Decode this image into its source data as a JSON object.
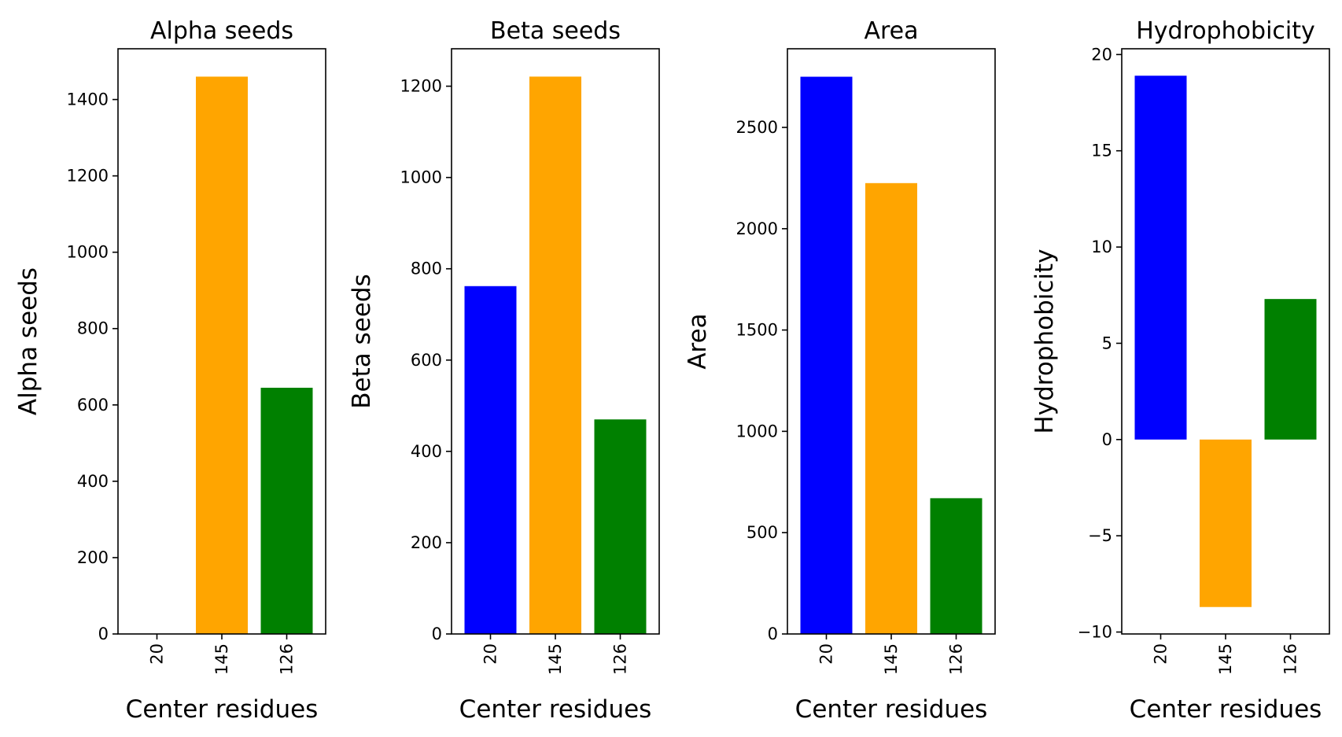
{
  "chart_data": [
    {
      "type": "bar",
      "title": "Alpha seeds",
      "xlabel": "Center residues",
      "ylabel": "Alpha seeds",
      "categories": [
        "20",
        "145",
        "126"
      ],
      "values": [
        0,
        1460,
        645
      ],
      "colors": [
        "#0000ff",
        "#ffa500",
        "#008000"
      ],
      "ylim": [
        0,
        1533
      ],
      "yticks": [
        0,
        200,
        400,
        600,
        800,
        1000,
        1200,
        1400
      ],
      "ytick_labels": [
        "0",
        "200",
        "400",
        "600",
        "800",
        "1000",
        "1200",
        "1400"
      ],
      "grid": false
    },
    {
      "type": "bar",
      "title": "Beta seeds",
      "xlabel": "Center residues",
      "ylabel": "Beta seeds",
      "categories": [
        "20",
        "145",
        "126"
      ],
      "values": [
        762,
        1221,
        470
      ],
      "colors": [
        "#0000ff",
        "#ffa500",
        "#008000"
      ],
      "ylim": [
        0,
        1282
      ],
      "yticks": [
        0,
        200,
        400,
        600,
        800,
        1000,
        1200
      ],
      "ytick_labels": [
        "0",
        "200",
        "400",
        "600",
        "800",
        "1000",
        "1200"
      ],
      "grid": false
    },
    {
      "type": "bar",
      "title": "Area",
      "xlabel": "Center residues",
      "ylabel": "Area",
      "categories": [
        "20",
        "145",
        "126"
      ],
      "values": [
        2750,
        2225,
        670
      ],
      "colors": [
        "#0000ff",
        "#ffa500",
        "#008000"
      ],
      "ylim": [
        0,
        2888
      ],
      "yticks": [
        0,
        500,
        1000,
        1500,
        2000,
        2500
      ],
      "ytick_labels": [
        "0",
        "500",
        "1000",
        "1500",
        "2000",
        "2500"
      ],
      "grid": false
    },
    {
      "type": "bar",
      "title": "Hydrophobicity",
      "xlabel": "Center residues",
      "ylabel": "Hydrophobicity",
      "categories": [
        "20",
        "145",
        "126"
      ],
      "values": [
        18.9,
        -8.7,
        7.3
      ],
      "colors": [
        "#0000ff",
        "#ffa500",
        "#008000"
      ],
      "ylim": [
        -10.1,
        20.3
      ],
      "yticks": [
        -10,
        -5,
        0,
        5,
        10,
        15,
        20
      ],
      "ytick_labels": [
        "−10",
        "−5",
        "0",
        "5",
        "10",
        "15",
        "20"
      ],
      "grid": false
    }
  ]
}
